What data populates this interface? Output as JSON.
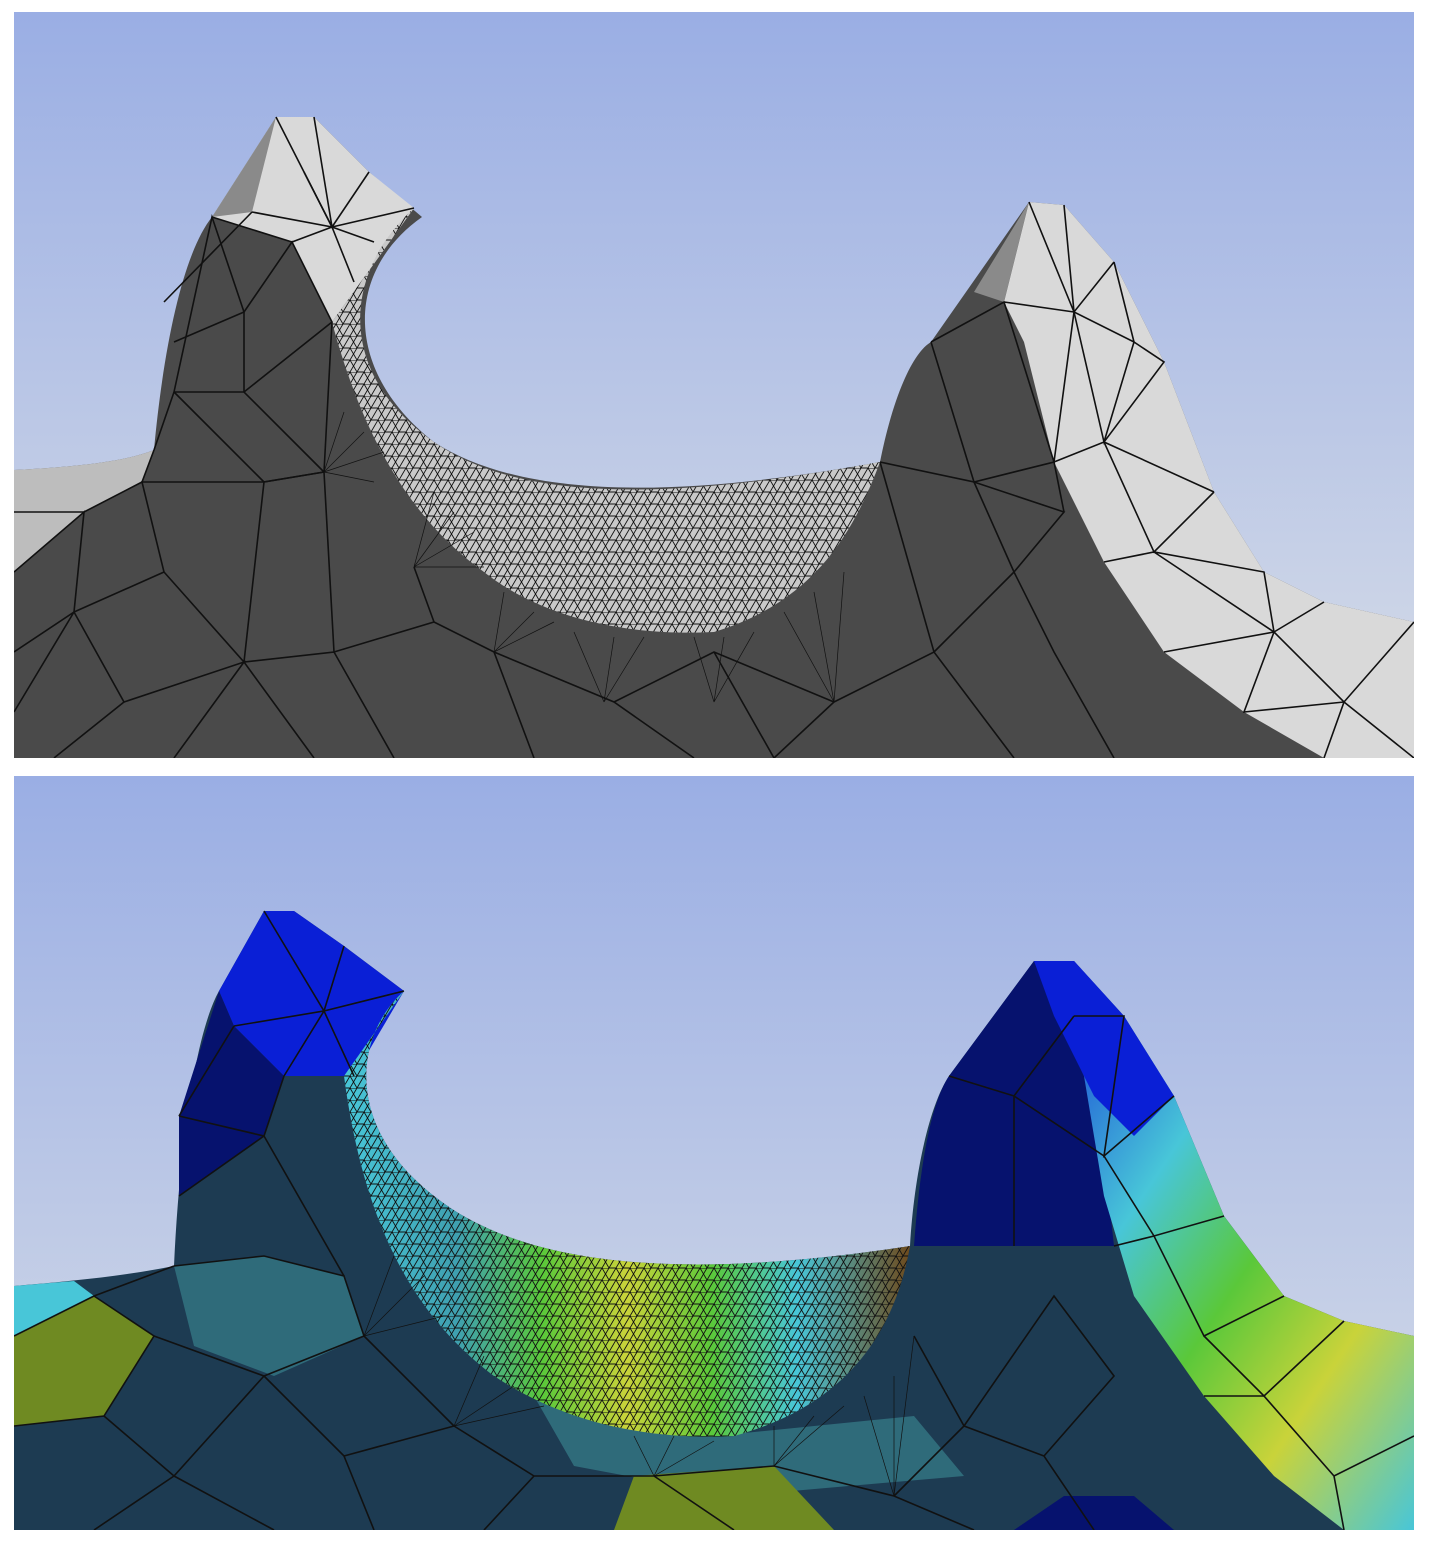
{
  "figure": {
    "panels": [
      {
        "id": "mesh-view",
        "description_kind": "gray-shaded tetrahedral mesh of two gear teeth with refined root fillet"
      },
      {
        "id": "contour-view",
        "description_kind": "colored result contour over the same mesh"
      }
    ]
  },
  "colors": {
    "sky_top": "#9aaee4",
    "sky_bottom": "#d7dde8",
    "dark_face": "#4a4a4a",
    "light_face": "#d9d9d9",
    "mid_face": "#8a8a8a",
    "mesh_edge": "#111111",
    "contour_blue": "#0a1fd6",
    "contour_deep_blue": "#06126e",
    "contour_teal": "#2f6b7a",
    "contour_dark_teal": "#1d3b52",
    "contour_cyan": "#48c6d8",
    "contour_green": "#5ac83a",
    "contour_yellow": "#c9d33a",
    "contour_olive": "#6f8a22",
    "contour_brown": "#6e4a1c"
  }
}
